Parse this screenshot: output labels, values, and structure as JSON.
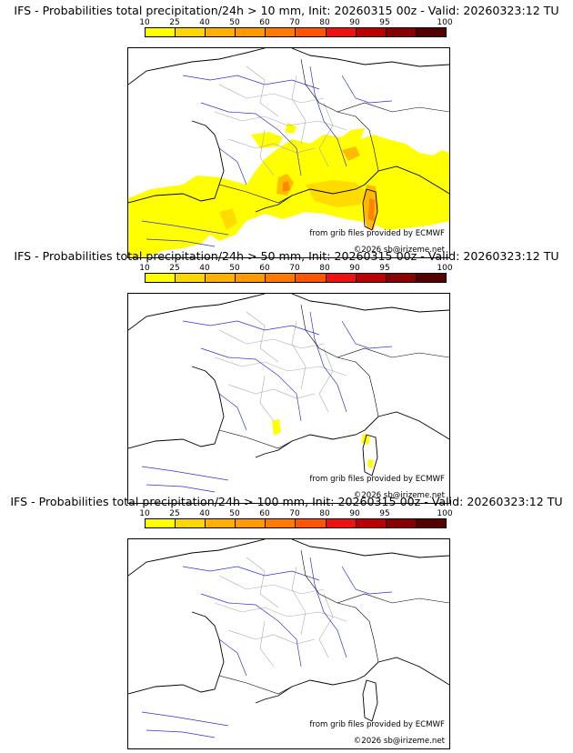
{
  "scale": {
    "ticks": [
      "10",
      "25",
      "40",
      "50",
      "60",
      "70",
      "80",
      "90",
      "95",
      "100"
    ],
    "colors": [
      "#ffff00",
      "#ffd700",
      "#ffb000",
      "#ff9900",
      "#ff7a00",
      "#ff5500",
      "#ee1111",
      "#bb0000",
      "#880000",
      "#550000"
    ]
  },
  "panels": [
    {
      "title": "IFS - Probabilities total precipitation/24h > 10 mm, Init: 20260315 00z - Valid: 20260323:12 TU",
      "credit": "from grib files provided by ECMWF",
      "copyright": "©2026 sb@irizeme.net",
      "coverage": "widespread"
    },
    {
      "title": "IFS - Probabilities total precipitation/24h > 50 mm, Init: 20260315 00z - Valid: 20260323:12 TU",
      "credit": "from grib files provided by ECMWF",
      "copyright": "©2026 sb@irizeme.net",
      "coverage": "isolated"
    },
    {
      "title": "IFS - Probabilities total precipitation/24h > 100 mm, Init: 20260315 00z - Valid: 20260323:12 TU",
      "credit": "from grib files provided by ECMWF",
      "copyright": "©2026 sb@irizeme.net",
      "coverage": "none"
    }
  ]
}
